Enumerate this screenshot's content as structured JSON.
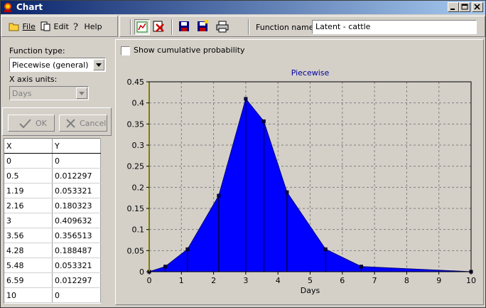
{
  "window": {
    "title": "Chart"
  },
  "menu": {
    "file": "File",
    "edit": "Edit",
    "help": "Help"
  },
  "toolbar": {
    "function_name_label": "Function name:",
    "function_name_value": "Latent - cattle"
  },
  "left_panel": {
    "function_type_label": "Function type:",
    "function_type_value": "Piecewise (general)",
    "x_units_label": "X axis units:",
    "x_units_value": "Days",
    "ok_label": "OK",
    "cancel_label": "Cancel"
  },
  "table": {
    "headers": [
      "X",
      "Y"
    ],
    "rows": [
      [
        "0",
        "0"
      ],
      [
        "0.5",
        "0.012297"
      ],
      [
        "1.19",
        "0.053321"
      ],
      [
        "2.16",
        "0.180323"
      ],
      [
        "3",
        "0.409632"
      ],
      [
        "3.56",
        "0.356513"
      ],
      [
        "4.28",
        "0.188487"
      ],
      [
        "5.48",
        "0.053321"
      ],
      [
        "6.59",
        "0.012297"
      ],
      [
        "10",
        "0"
      ]
    ]
  },
  "options": {
    "cumulative_label": "Show cumulative probability"
  },
  "colors": {
    "fill": "#0000ff",
    "plot_bg": "#d4d0c8",
    "title": "#0000a0",
    "y_axis_highlight": "#ffff00"
  },
  "chart_data": {
    "type": "area",
    "title": "Piecewise",
    "xlabel": "Days",
    "ylabel": "",
    "xlim": [
      0,
      10
    ],
    "ylim": [
      0,
      0.45
    ],
    "xticks": [
      0,
      1,
      2,
      3,
      4,
      5,
      6,
      7,
      8,
      9,
      10
    ],
    "yticks": [
      0,
      0.05,
      0.1,
      0.15,
      0.2,
      0.25,
      0.3,
      0.35,
      0.4,
      0.45
    ],
    "grid": true,
    "series": [
      {
        "x": [
          0,
          0.5,
          1.19,
          2.16,
          3,
          3.56,
          4.28,
          5.48,
          6.59,
          10
        ],
        "y": [
          0,
          0.012297,
          0.053321,
          0.180323,
          0.409632,
          0.356513,
          0.188487,
          0.053321,
          0.012297,
          0
        ]
      }
    ]
  }
}
